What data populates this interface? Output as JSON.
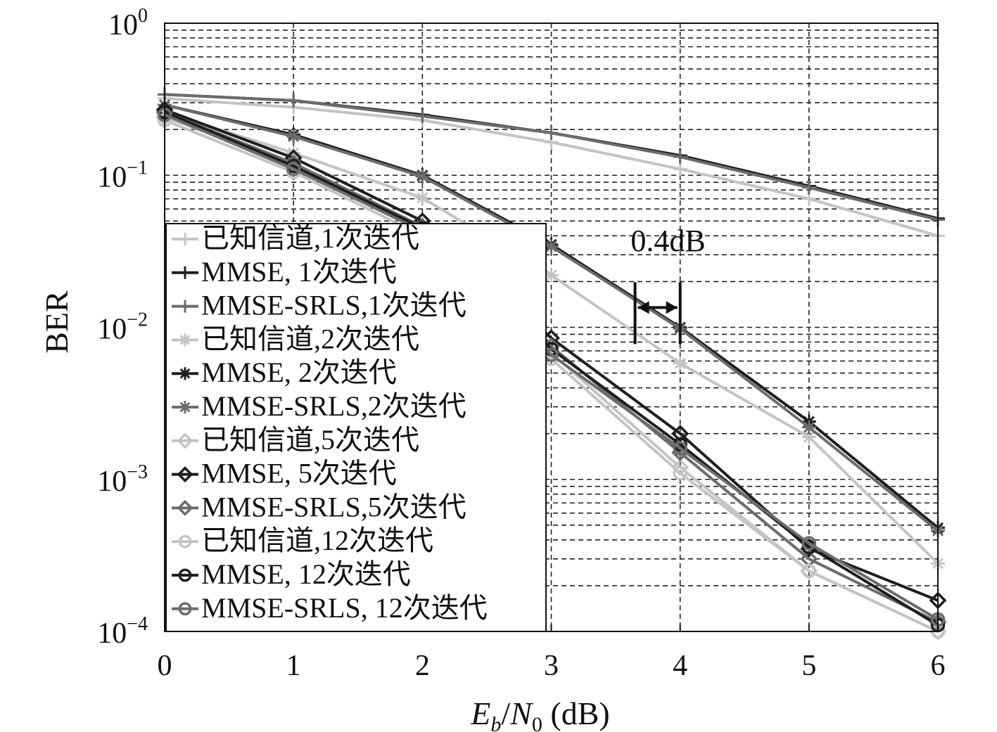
{
  "chart_data": {
    "type": "line",
    "title": "",
    "xlabel": "E_b/N_0 (dB)",
    "xlabel_parts": {
      "e": "E",
      "b": "b",
      "slash": "/",
      "n": "N",
      "zero": "0",
      "unit": " (dB)"
    },
    "ylabel": "BER",
    "x": [
      0,
      1,
      2,
      3,
      4,
      5,
      6
    ],
    "xlim": [
      0,
      6
    ],
    "ylim": [
      0.0001,
      1
    ],
    "yscale": "log",
    "grid": true,
    "x_tick_labels": [
      "0",
      "1",
      "2",
      "3",
      "4",
      "5",
      "6"
    ],
    "y_tick_labels": [
      {
        "base": "10",
        "exp": "0",
        "value": 1
      },
      {
        "base": "10",
        "exp": "−1",
        "value": 0.1
      },
      {
        "base": "10",
        "exp": "−2",
        "value": 0.01
      },
      {
        "base": "10",
        "exp": "−3",
        "value": 0.001
      },
      {
        "base": "10",
        "exp": "−4",
        "value": 0.0001
      }
    ],
    "legend_position": "left",
    "annotation": {
      "text": "0.4dB",
      "x_from": 3.65,
      "x_to": 4.0,
      "y": 0.0135
    },
    "series": [
      {
        "name": "已知信道,1次迭代",
        "color": "#c4c4c4",
        "marker": "plus",
        "values": [
          0.32,
          0.28,
          0.23,
          0.165,
          0.11,
          0.07,
          0.04
        ]
      },
      {
        "name": "MMSE, 1次迭代",
        "color": "#1e1e1e",
        "marker": "plus",
        "values": [
          0.34,
          0.31,
          0.25,
          0.19,
          0.135,
          0.085,
          0.052
        ]
      },
      {
        "name": "MMSE-SRLS,1次迭代",
        "color": "#6c6c6c",
        "marker": "plus",
        "values": [
          0.34,
          0.31,
          0.245,
          0.19,
          0.132,
          0.083,
          0.051
        ]
      },
      {
        "name": "已知信道,2次迭代",
        "color": "#c4c4c4",
        "marker": "star",
        "values": [
          0.26,
          0.14,
          0.071,
          0.022,
          0.0058,
          0.0019,
          0.00028
        ]
      },
      {
        "name": "MMSE, 2次迭代",
        "color": "#1e1e1e",
        "marker": "star",
        "values": [
          0.29,
          0.185,
          0.1,
          0.035,
          0.01,
          0.0024,
          0.00048
        ]
      },
      {
        "name": "MMSE-SRLS,2次迭代",
        "color": "#6c6c6c",
        "marker": "star",
        "values": [
          0.29,
          0.18,
          0.098,
          0.034,
          0.0098,
          0.0022,
          0.00046
        ]
      },
      {
        "name": "已知信道,5次迭代",
        "color": "#c4c4c4",
        "marker": "diamond",
        "values": [
          0.24,
          0.12,
          0.043,
          0.0068,
          0.0012,
          0.00025,
          0.0001
        ]
      },
      {
        "name": "MMSE, 5次迭代",
        "color": "#1e1e1e",
        "marker": "diamond",
        "values": [
          0.27,
          0.13,
          0.05,
          0.0085,
          0.002,
          0.00035,
          0.00016
        ]
      },
      {
        "name": "MMSE-SRLS,5次迭代",
        "color": "#6c6c6c",
        "marker": "diamond",
        "values": [
          0.26,
          0.12,
          0.046,
          0.0075,
          0.0015,
          0.0003,
          0.000115
        ]
      },
      {
        "name": "已知信道,12次迭代",
        "color": "#c4c4c4",
        "marker": "circle",
        "values": [
          0.23,
          0.105,
          0.04,
          0.0062,
          0.0011,
          0.00025,
          0.0001
        ]
      },
      {
        "name": "MMSE, 12次迭代",
        "color": "#1e1e1e",
        "marker": "circle",
        "values": [
          0.26,
          0.115,
          0.045,
          0.0072,
          0.0017,
          0.00036,
          0.00011
        ]
      },
      {
        "name": "MMSE-SRLS, 12次迭代",
        "color": "#6c6c6c",
        "marker": "circle",
        "values": [
          0.25,
          0.11,
          0.043,
          0.0066,
          0.0016,
          0.00038,
          0.00012
        ]
      }
    ]
  }
}
